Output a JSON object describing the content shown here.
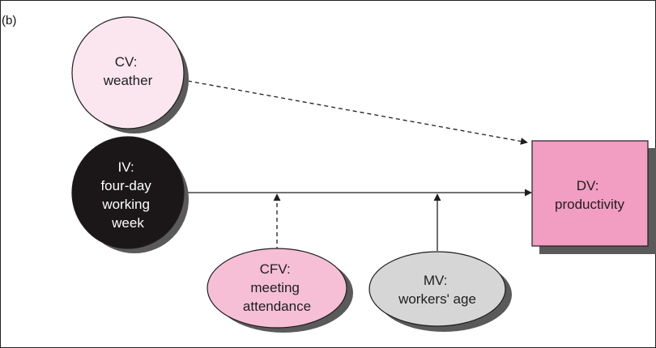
{
  "panel_label": "(b)",
  "colors": {
    "cv_fill": "#fbe6ef",
    "iv_fill": "#1b1718",
    "dv_fill": "#f29dc2",
    "cfv_fill": "#f6bfd6",
    "mv_fill": "#d6d6d6",
    "shadow": "#5a5a5a",
    "stroke": "#1e1e1e"
  },
  "nodes": {
    "cv": {
      "lines": [
        "CV:",
        "weather"
      ]
    },
    "iv": {
      "lines": [
        "IV:",
        "four-day",
        "working",
        "week"
      ]
    },
    "dv": {
      "lines": [
        "DV:",
        "productivity"
      ]
    },
    "cfv": {
      "lines": [
        "CFV:",
        "meeting",
        "attendance"
      ]
    },
    "mv": {
      "lines": [
        "MV:",
        "workers' age"
      ]
    }
  },
  "edges": [
    {
      "from": "cv",
      "to": "dv",
      "style": "dashed"
    },
    {
      "from": "iv",
      "to": "dv",
      "style": "solid"
    },
    {
      "from": "cfv",
      "to": "iv-dv",
      "style": "dashed"
    },
    {
      "from": "mv",
      "to": "iv-dv",
      "style": "solid"
    }
  ]
}
